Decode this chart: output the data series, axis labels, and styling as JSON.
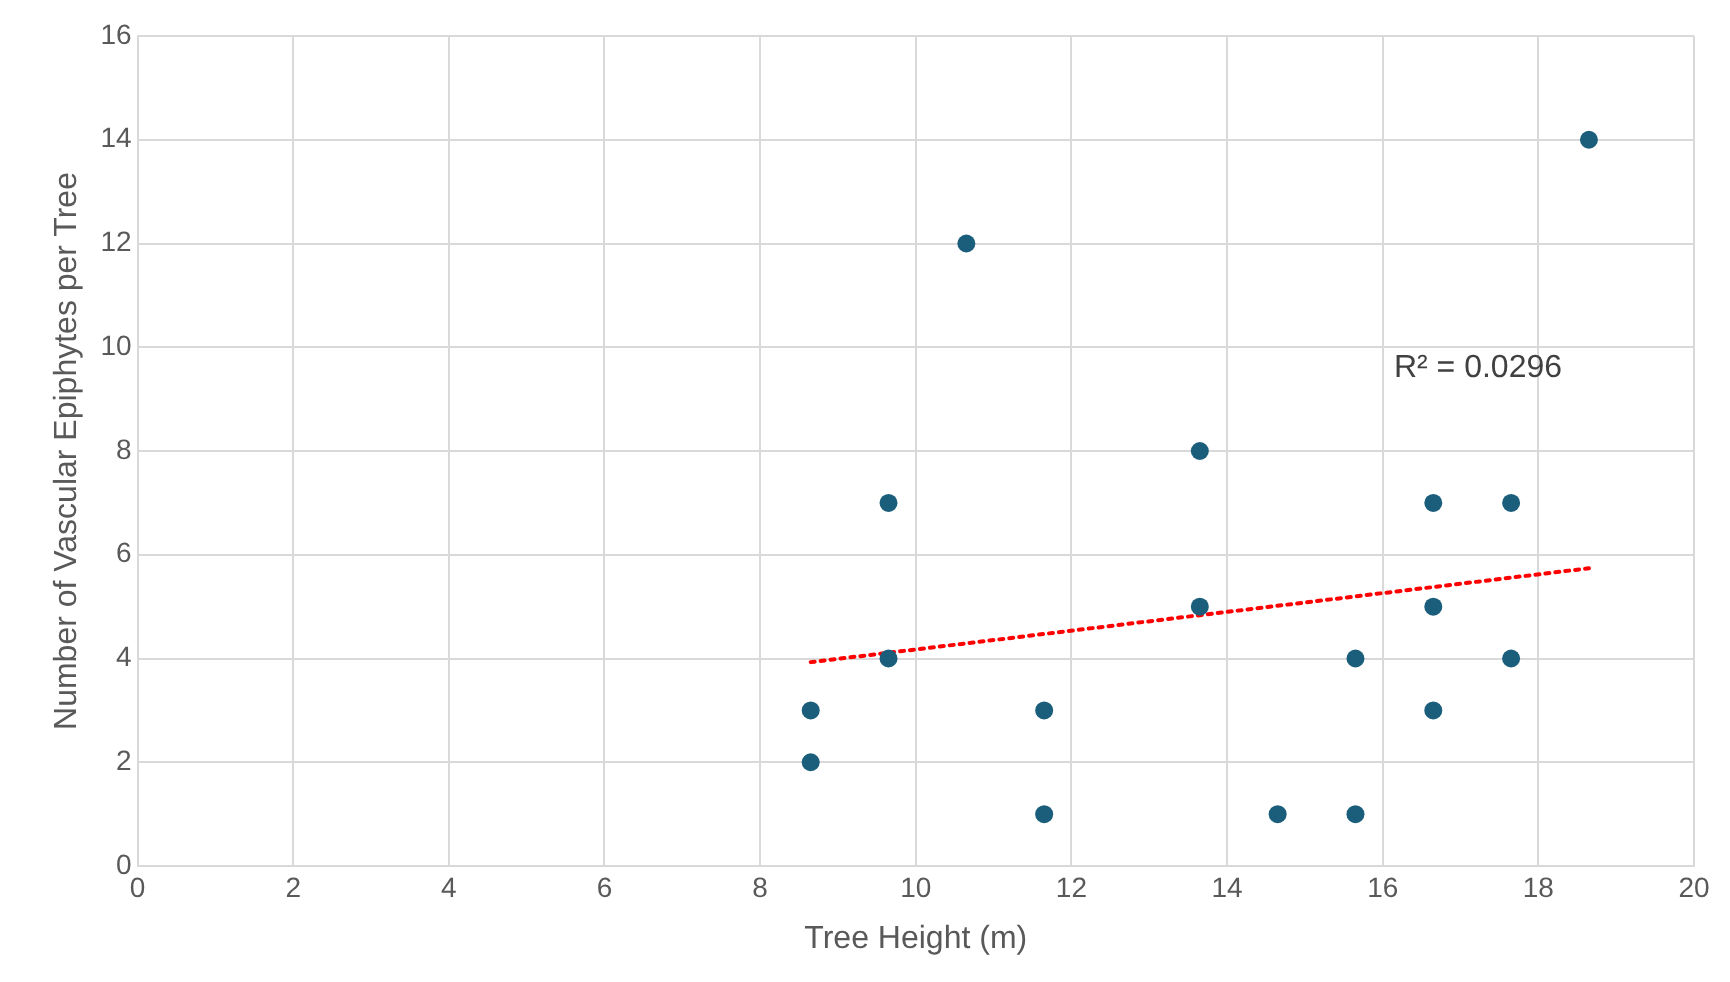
{
  "chart_data": {
    "type": "scatter",
    "xlabel": "Tree Height (m)",
    "ylabel": "Number of Vascular Epiphytes per Tree",
    "xlim": [
      0,
      20
    ],
    "xticks": [
      0,
      2,
      4,
      6,
      8,
      10,
      12,
      14,
      16,
      18,
      20
    ],
    "ylim": [
      0,
      16
    ],
    "yticks": [
      0,
      2,
      4,
      6,
      8,
      10,
      12,
      14,
      16
    ],
    "grid": true,
    "legend": false,
    "marker": "circle",
    "series": [
      {
        "color": "#1b5e7b",
        "x": [
          8.65,
          8.65,
          9.65,
          9.65,
          10.65,
          11.65,
          11.65,
          13.65,
          13.65,
          14.65,
          15.65,
          15.65,
          16.65,
          16.65,
          16.65,
          17.65,
          17.65,
          18.65
        ],
        "values": [
          3,
          2,
          7,
          4,
          12,
          3,
          1,
          8,
          5,
          1,
          4,
          1,
          7,
          5,
          3,
          7,
          4,
          14
        ]
      },
      {
        "type": "line",
        "color": "#ff0000",
        "line_style": "dotted",
        "marker": "none",
        "x": [
          8.65,
          18.65
        ],
        "values": [
          3.93,
          5.74
        ]
      }
    ],
    "annotations": [
      "R² = 0.0296"
    ]
  }
}
